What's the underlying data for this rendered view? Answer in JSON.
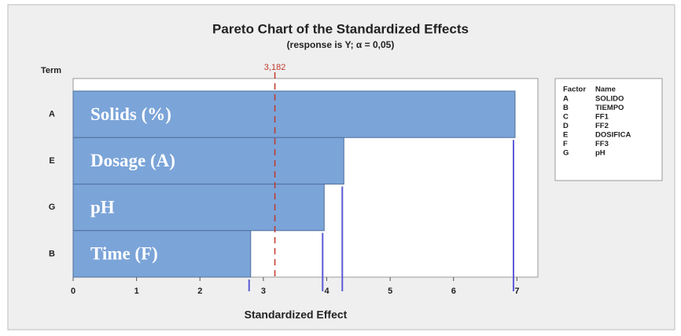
{
  "chart_data": {
    "type": "bar",
    "orientation": "horizontal",
    "title": "Pareto Chart of the Standardized Effects",
    "subtitle": "(response is Y; α = 0,05)",
    "y_label": "Term",
    "x_label": "Standardized Effect",
    "categories": [
      "A",
      "E",
      "G",
      "B"
    ],
    "bar_labels": [
      "Solids (%)",
      "Dosage (A)",
      "pH",
      "Time (F)"
    ],
    "values": [
      6.97,
      4.27,
      3.96,
      2.8
    ],
    "color": "#7ba4d8",
    "xlim": [
      0,
      7.33
    ],
    "xticks": [
      0,
      1,
      2,
      3,
      4,
      5,
      6,
      7
    ],
    "reference_line": {
      "value": 3.182,
      "label": "3,182",
      "color": "#c0392b"
    },
    "legend": {
      "headers": [
        "Factor",
        "Name"
      ],
      "rows": [
        [
          "A",
          "SOLIDO"
        ],
        [
          "B",
          "TIEMPO"
        ],
        [
          "C",
          "FF1"
        ],
        [
          "D",
          "FF2"
        ],
        [
          "E",
          "DOSIFICA"
        ],
        [
          "F",
          "FF3"
        ],
        [
          "G",
          "pH"
        ]
      ]
    }
  }
}
